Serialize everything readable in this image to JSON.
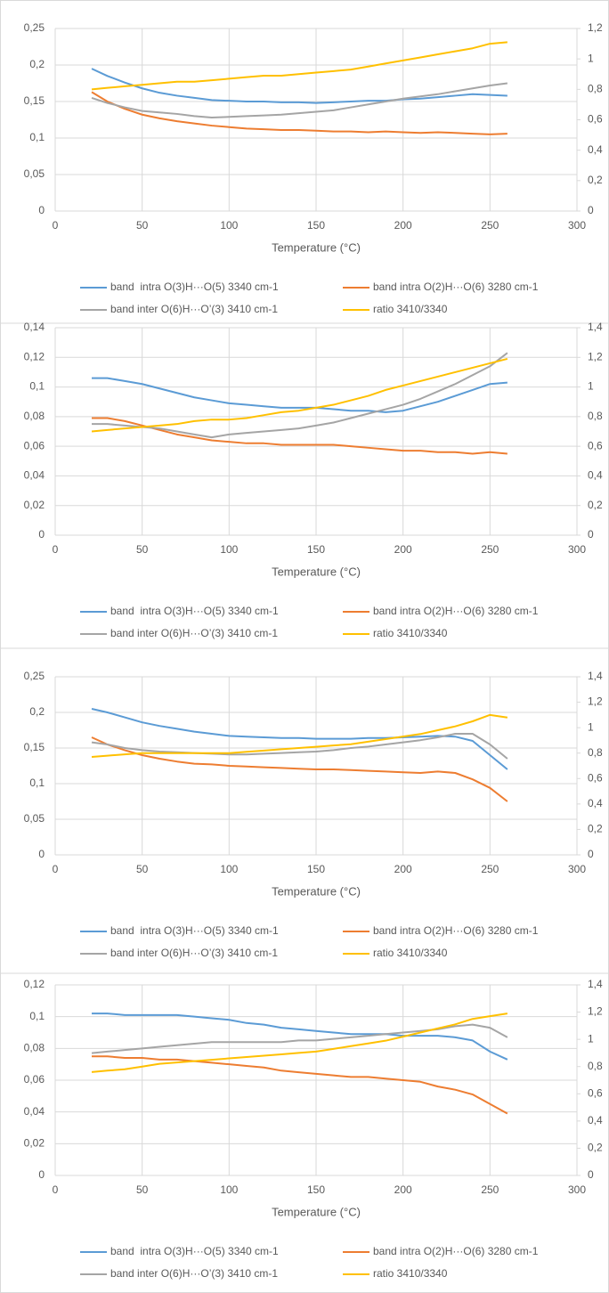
{
  "chart_data": [
    {
      "type": "line",
      "x_label": "Temperature (°C)",
      "grid": true,
      "x": [
        21,
        30,
        40,
        50,
        60,
        70,
        80,
        90,
        100,
        110,
        120,
        130,
        140,
        150,
        160,
        170,
        180,
        190,
        200,
        210,
        220,
        230,
        240,
        250,
        260
      ],
      "xlim": [
        0,
        300
      ],
      "xticks": [
        0,
        50,
        100,
        150,
        200,
        250,
        300
      ],
      "ylim": [
        0,
        0.25
      ],
      "yticks": [
        0,
        {
          "value": 0.05,
          "label": "0,05"
        },
        {
          "value": 0.1,
          "label": "0,1"
        },
        {
          "value": 0.15,
          "label": "0,15"
        },
        {
          "value": 0.2,
          "label": "0,2"
        },
        {
          "value": 0.25,
          "label": "0,25"
        }
      ],
      "y2lim": [
        0,
        1.2
      ],
      "y2ticks": [
        0,
        {
          "value": 0.2,
          "label": "0,2"
        },
        {
          "value": 0.4,
          "label": "0,4"
        },
        {
          "value": 0.6,
          "label": "0,6"
        },
        {
          "value": 0.8,
          "label": "0,8"
        },
        1,
        {
          "value": 1.2,
          "label": "1,2"
        }
      ],
      "series": [
        {
          "name": "band  intra O(3)H···O(5) 3340 cm-1",
          "color": "#5b9bd5",
          "values": [
            0.195,
            0.185,
            0.176,
            0.168,
            0.162,
            0.158,
            0.155,
            0.152,
            0.151,
            0.15,
            0.15,
            0.149,
            0.149,
            0.148,
            0.149,
            0.15,
            0.151,
            0.151,
            0.153,
            0.154,
            0.156,
            0.158,
            0.16,
            0.159,
            0.158
          ]
        },
        {
          "name": "band intra O(2)H···O(6) 3280 cm-1",
          "color": "#ed7d31",
          "values": [
            0.163,
            0.15,
            0.14,
            0.132,
            0.127,
            0.123,
            0.12,
            0.117,
            0.115,
            0.113,
            0.112,
            0.111,
            0.111,
            0.11,
            0.109,
            0.109,
            0.108,
            0.109,
            0.108,
            0.107,
            0.108,
            0.107,
            0.106,
            0.105,
            0.106
          ]
        },
        {
          "name": "band inter O(6)H···O’(3) 3410 cm-1",
          "color": "#a5a5a5",
          "values": [
            0.155,
            0.148,
            0.142,
            0.137,
            0.135,
            0.133,
            0.13,
            0.128,
            0.129,
            0.13,
            0.131,
            0.132,
            0.134,
            0.136,
            0.138,
            0.142,
            0.146,
            0.15,
            0.154,
            0.157,
            0.16,
            0.164,
            0.168,
            0.172,
            0.175
          ]
        },
        {
          "name": "ratio 3410/3340",
          "color": "#ffc000",
          "axis": "y2",
          "values": [
            0.8,
            0.81,
            0.82,
            0.83,
            0.84,
            0.85,
            0.85,
            0.86,
            0.87,
            0.88,
            0.89,
            0.89,
            0.9,
            0.91,
            0.92,
            0.93,
            0.95,
            0.97,
            0.99,
            1.01,
            1.03,
            1.05,
            1.07,
            1.1,
            1.11
          ]
        }
      ]
    },
    {
      "type": "line",
      "x_label": "Temperature (°C)",
      "grid": true,
      "x": [
        21,
        30,
        40,
        50,
        60,
        70,
        80,
        90,
        100,
        110,
        120,
        130,
        140,
        150,
        160,
        170,
        180,
        190,
        200,
        210,
        220,
        230,
        240,
        250,
        260
      ],
      "xlim": [
        0,
        300
      ],
      "xticks": [
        0,
        50,
        100,
        150,
        200,
        250,
        300
      ],
      "ylim": [
        0,
        0.14
      ],
      "yticks": [
        0,
        {
          "value": 0.02,
          "label": "0,02"
        },
        {
          "value": 0.04,
          "label": "0,04"
        },
        {
          "value": 0.06,
          "label": "0,06"
        },
        {
          "value": 0.08,
          "label": "0,08"
        },
        {
          "value": 0.1,
          "label": "0,1"
        },
        {
          "value": 0.12,
          "label": "0,12"
        },
        {
          "value": 0.14,
          "label": "0,14"
        }
      ],
      "y2lim": [
        0,
        1.4
      ],
      "y2ticks": [
        0,
        {
          "value": 0.2,
          "label": "0,2"
        },
        {
          "value": 0.4,
          "label": "0,4"
        },
        {
          "value": 0.6,
          "label": "0,6"
        },
        {
          "value": 0.8,
          "label": "0,8"
        },
        1,
        {
          "value": 1.2,
          "label": "1,2"
        },
        {
          "value": 1.4,
          "label": "1,4"
        }
      ],
      "series": [
        {
          "name": "band  intra O(3)H···O(5) 3340 cm-1",
          "color": "#5b9bd5",
          "values": [
            0.106,
            0.106,
            0.104,
            0.102,
            0.099,
            0.096,
            0.093,
            0.091,
            0.089,
            0.088,
            0.087,
            0.086,
            0.086,
            0.086,
            0.085,
            0.084,
            0.084,
            0.083,
            0.084,
            0.087,
            0.09,
            0.094,
            0.098,
            0.102,
            0.103
          ]
        },
        {
          "name": "band intra O(2)H···O(6) 3280 cm-1",
          "color": "#ed7d31",
          "values": [
            0.079,
            0.079,
            0.077,
            0.074,
            0.071,
            0.068,
            0.066,
            0.064,
            0.063,
            0.062,
            0.062,
            0.061,
            0.061,
            0.061,
            0.061,
            0.06,
            0.059,
            0.058,
            0.057,
            0.057,
            0.056,
            0.056,
            0.055,
            0.056,
            0.055
          ]
        },
        {
          "name": "band inter O(6)H···O’(3) 3410 cm-1",
          "color": "#a5a5a5",
          "values": [
            0.075,
            0.075,
            0.074,
            0.073,
            0.072,
            0.07,
            0.068,
            0.066,
            0.068,
            0.069,
            0.07,
            0.071,
            0.072,
            0.074,
            0.076,
            0.079,
            0.082,
            0.085,
            0.088,
            0.092,
            0.097,
            0.102,
            0.108,
            0.114,
            0.123
          ]
        },
        {
          "name": "ratio 3410/3340",
          "color": "#ffc000",
          "axis": "y2",
          "values": [
            0.7,
            0.71,
            0.72,
            0.73,
            0.74,
            0.75,
            0.77,
            0.78,
            0.78,
            0.79,
            0.81,
            0.83,
            0.84,
            0.86,
            0.88,
            0.91,
            0.94,
            0.98,
            1.01,
            1.04,
            1.07,
            1.1,
            1.13,
            1.16,
            1.19
          ]
        }
      ]
    },
    {
      "type": "line",
      "x_label": "Temperature (°C)",
      "grid": true,
      "x": [
        21,
        30,
        40,
        50,
        60,
        70,
        80,
        90,
        100,
        110,
        120,
        130,
        140,
        150,
        160,
        170,
        180,
        190,
        200,
        210,
        220,
        230,
        240,
        250,
        260
      ],
      "xlim": [
        0,
        300
      ],
      "xticks": [
        0,
        50,
        100,
        150,
        200,
        250,
        300
      ],
      "ylim": [
        0,
        0.25
      ],
      "yticks": [
        0,
        {
          "value": 0.05,
          "label": "0,05"
        },
        {
          "value": 0.1,
          "label": "0,1"
        },
        {
          "value": 0.15,
          "label": "0,15"
        },
        {
          "value": 0.2,
          "label": "0,2"
        },
        {
          "value": 0.25,
          "label": "0,25"
        }
      ],
      "y2lim": [
        0,
        1.4
      ],
      "y2ticks": [
        0,
        {
          "value": 0.2,
          "label": "0,2"
        },
        {
          "value": 0.4,
          "label": "0,4"
        },
        {
          "value": 0.6,
          "label": "0,6"
        },
        {
          "value": 0.8,
          "label": "0,8"
        },
        1,
        {
          "value": 1.2,
          "label": "1,2"
        },
        {
          "value": 1.4,
          "label": "1,4"
        }
      ],
      "series": [
        {
          "name": "band  intra O(3)H···O(5) 3340 cm-1",
          "color": "#5b9bd5",
          "values": [
            0.205,
            0.2,
            0.193,
            0.186,
            0.181,
            0.177,
            0.173,
            0.17,
            0.167,
            0.166,
            0.165,
            0.164,
            0.164,
            0.163,
            0.163,
            0.163,
            0.164,
            0.164,
            0.165,
            0.166,
            0.167,
            0.166,
            0.16,
            0.14,
            0.12
          ]
        },
        {
          "name": "band intra O(2)H···O(6) 3280 cm-1",
          "color": "#ed7d31",
          "values": [
            0.165,
            0.155,
            0.147,
            0.14,
            0.135,
            0.131,
            0.128,
            0.127,
            0.125,
            0.124,
            0.123,
            0.122,
            0.121,
            0.12,
            0.12,
            0.119,
            0.118,
            0.117,
            0.116,
            0.115,
            0.117,
            0.115,
            0.106,
            0.094,
            0.075
          ]
        },
        {
          "name": "band inter O(6)H···O’(3) 3410 cm-1",
          "color": "#a5a5a5",
          "values": [
            0.158,
            0.155,
            0.15,
            0.147,
            0.145,
            0.144,
            0.143,
            0.142,
            0.141,
            0.141,
            0.142,
            0.143,
            0.144,
            0.145,
            0.147,
            0.15,
            0.152,
            0.155,
            0.158,
            0.161,
            0.165,
            0.17,
            0.17,
            0.155,
            0.135
          ]
        },
        {
          "name": "ratio 3410/3340",
          "color": "#ffc000",
          "axis": "y2",
          "values": [
            0.77,
            0.78,
            0.79,
            0.8,
            0.8,
            0.8,
            0.8,
            0.8,
            0.8,
            0.81,
            0.82,
            0.83,
            0.84,
            0.85,
            0.86,
            0.87,
            0.89,
            0.91,
            0.93,
            0.95,
            0.98,
            1.01,
            1.05,
            1.1,
            1.08
          ]
        }
      ]
    },
    {
      "type": "line",
      "x_label": "Temperature (°C)",
      "grid": true,
      "x": [
        21,
        30,
        40,
        50,
        60,
        70,
        80,
        90,
        100,
        110,
        120,
        130,
        140,
        150,
        160,
        170,
        180,
        190,
        200,
        210,
        220,
        230,
        240,
        250,
        260
      ],
      "xlim": [
        0,
        300
      ],
      "xticks": [
        0,
        50,
        100,
        150,
        200,
        250,
        300
      ],
      "ylim": [
        0,
        0.12
      ],
      "yticks": [
        0,
        {
          "value": 0.02,
          "label": "0,02"
        },
        {
          "value": 0.04,
          "label": "0,04"
        },
        {
          "value": 0.06,
          "label": "0,06"
        },
        {
          "value": 0.08,
          "label": "0,08"
        },
        {
          "value": 0.1,
          "label": "0,1"
        },
        {
          "value": 0.12,
          "label": "0,12"
        }
      ],
      "y2lim": [
        0,
        1.4
      ],
      "y2ticks": [
        0,
        {
          "value": 0.2,
          "label": "0,2"
        },
        {
          "value": 0.4,
          "label": "0,4"
        },
        {
          "value": 0.6,
          "label": "0,6"
        },
        {
          "value": 0.8,
          "label": "0,8"
        },
        1,
        {
          "value": 1.2,
          "label": "1,2"
        },
        {
          "value": 1.4,
          "label": "1,4"
        }
      ],
      "series": [
        {
          "name": "band  intra O(3)H···O(5) 3340 cm-1",
          "color": "#5b9bd5",
          "values": [
            0.102,
            0.102,
            0.101,
            0.101,
            0.101,
            0.101,
            0.1,
            0.099,
            0.098,
            0.096,
            0.095,
            0.093,
            0.092,
            0.091,
            0.09,
            0.089,
            0.089,
            0.089,
            0.088,
            0.088,
            0.088,
            0.087,
            0.085,
            0.078,
            0.073
          ]
        },
        {
          "name": "band intra O(2)H···O(6) 3280 cm-1",
          "color": "#ed7d31",
          "values": [
            0.075,
            0.075,
            0.074,
            0.074,
            0.073,
            0.073,
            0.072,
            0.071,
            0.07,
            0.069,
            0.068,
            0.066,
            0.065,
            0.064,
            0.063,
            0.062,
            0.062,
            0.061,
            0.06,
            0.059,
            0.056,
            0.054,
            0.051,
            0.045,
            0.039
          ]
        },
        {
          "name": "band inter O(6)H···O’(3) 3410 cm-1",
          "color": "#a5a5a5",
          "values": [
            0.077,
            0.078,
            0.079,
            0.08,
            0.081,
            0.082,
            0.083,
            0.084,
            0.084,
            0.084,
            0.084,
            0.084,
            0.085,
            0.085,
            0.086,
            0.087,
            0.088,
            0.089,
            0.09,
            0.091,
            0.092,
            0.094,
            0.095,
            0.093,
            0.087
          ]
        },
        {
          "name": "ratio 3410/3340",
          "color": "#ffc000",
          "axis": "y2",
          "values": [
            0.76,
            0.77,
            0.78,
            0.8,
            0.82,
            0.83,
            0.84,
            0.85,
            0.86,
            0.87,
            0.88,
            0.89,
            0.9,
            0.91,
            0.93,
            0.95,
            0.97,
            0.99,
            1.02,
            1.05,
            1.08,
            1.11,
            1.15,
            1.17,
            1.19
          ]
        }
      ]
    }
  ]
}
